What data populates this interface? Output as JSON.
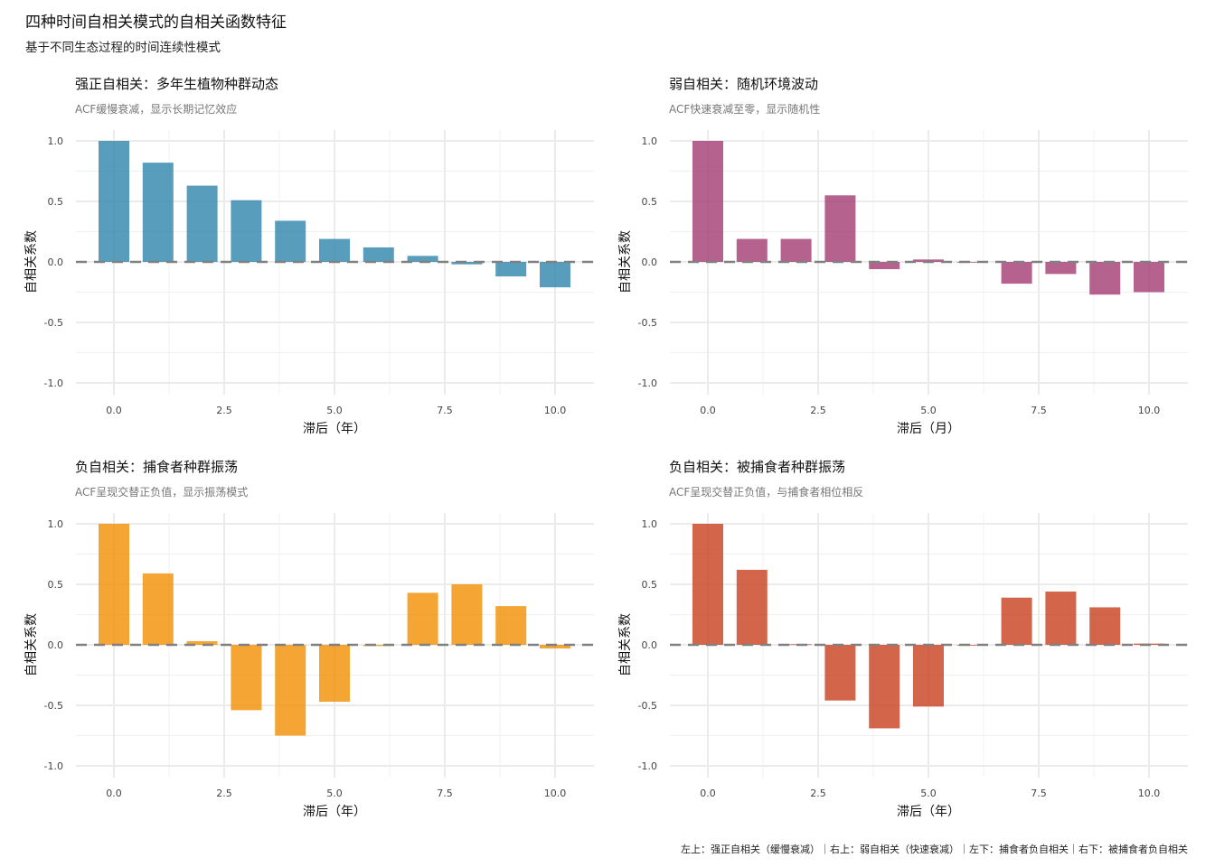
{
  "title": "四种时间自相关模式的自相关函数特征",
  "subtitle": "基于不同生态过程的时间连续性模式",
  "caption": "左上：强正自相关（缓慢衰减）｜右上：弱自相关（快速衰减）｜左下：捕食者负自相关｜右下：被捕食者负自相关",
  "chart_data": [
    {
      "type": "bar",
      "title": "强正自相关：多年生植物种群动态",
      "subtitle": "ACF缓慢衰减，显示长期记忆效应",
      "xlabel": "滞后（年）",
      "ylabel": "自相关系数",
      "color": "#2E86AB",
      "x": [
        0,
        1,
        2,
        3,
        4,
        5,
        6,
        7,
        8,
        9,
        10
      ],
      "values": [
        1.0,
        0.82,
        0.63,
        0.51,
        0.34,
        0.19,
        0.12,
        0.05,
        -0.02,
        -0.12,
        -0.21
      ],
      "xticks": [
        "0.0",
        "2.5",
        "5.0",
        "7.5",
        "10.0"
      ],
      "yticks": [
        "1.0",
        "0.5",
        "0.0",
        "-0.5",
        "-1.0"
      ],
      "ylim": [
        -1,
        1
      ],
      "grid": true,
      "reference_line": 0
    },
    {
      "type": "bar",
      "title": "弱自相关：随机环境波动",
      "subtitle": "ACF快速衰减至零，显示随机性",
      "xlabel": "滞后（月）",
      "ylabel": "自相关系数",
      "color": "#A23B72",
      "x": [
        0,
        1,
        2,
        3,
        4,
        5,
        6,
        7,
        8,
        9,
        10
      ],
      "values": [
        1.0,
        0.19,
        0.19,
        0.55,
        -0.06,
        0.02,
        0.0,
        -0.18,
        -0.1,
        -0.27,
        -0.25
      ],
      "xticks": [
        "0.0",
        "2.5",
        "5.0",
        "7.5",
        "10.0"
      ],
      "yticks": [
        "1.0",
        "0.5",
        "0.0",
        "-0.5",
        "-1.0"
      ],
      "ylim": [
        -1,
        1
      ],
      "grid": true,
      "reference_line": 0
    },
    {
      "type": "bar",
      "title": "负自相关：捕食者种群振荡",
      "subtitle": "ACF呈现交替正负值，显示振荡模式",
      "xlabel": "滞后（年）",
      "ylabel": "自相关系数",
      "color": "#F18F01",
      "x": [
        0,
        1,
        2,
        3,
        4,
        5,
        6,
        7,
        8,
        9,
        10
      ],
      "values": [
        1.0,
        0.59,
        0.03,
        -0.54,
        -0.75,
        -0.47,
        -0.01,
        0.43,
        0.5,
        0.32,
        -0.03
      ],
      "xticks": [
        "0.0",
        "2.5",
        "5.0",
        "7.5",
        "10.0"
      ],
      "yticks": [
        "1.0",
        "0.5",
        "0.0",
        "-0.5",
        "-1.0"
      ],
      "ylim": [
        -1,
        1
      ],
      "grid": true,
      "reference_line": 0
    },
    {
      "type": "bar",
      "title": "负自相关：被捕食者种群振荡",
      "subtitle": "ACF呈现交替正负值，与捕食者相位相反",
      "xlabel": "滞后（年）",
      "ylabel": "自相关系数",
      "color": "#C73E1D",
      "x": [
        0,
        1,
        2,
        3,
        4,
        5,
        6,
        7,
        8,
        9,
        10
      ],
      "values": [
        1.0,
        0.62,
        0.005,
        -0.46,
        -0.69,
        -0.51,
        0.0,
        0.39,
        0.44,
        0.31,
        0.01
      ],
      "xticks": [
        "0.0",
        "2.5",
        "5.0",
        "7.5",
        "10.0"
      ],
      "yticks": [
        "1.0",
        "0.5",
        "0.0",
        "-0.5",
        "-1.0"
      ],
      "ylim": [
        -1,
        1
      ],
      "grid": true,
      "reference_line": 0
    }
  ]
}
